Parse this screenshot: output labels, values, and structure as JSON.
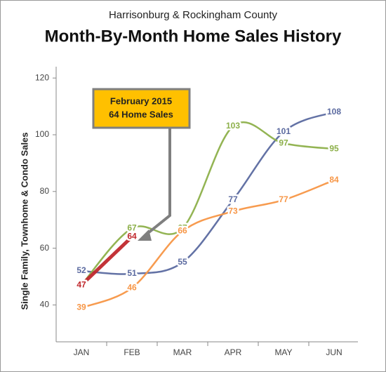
{
  "chart_data": {
    "type": "line",
    "subtitle": "Harrisonburg & Rockingham County",
    "title": "Month-By-Month Home Sales History",
    "y_label": "Single Family, Townhome & Condo Sales",
    "annotation": [
      "February 2015",
      "64 Home Sales"
    ],
    "categories": [
      "JAN",
      "FEB",
      "MAR",
      "APR",
      "MAY",
      "JUN"
    ],
    "series": [
      {
        "color": "#5b6aa0",
        "values": [
          52,
          51,
          55,
          77,
          101,
          108
        ]
      },
      {
        "color": "#8db04a",
        "values": [
          47,
          67,
          67,
          103,
          97,
          95
        ]
      },
      {
        "color": "#f79646",
        "values": [
          39,
          46,
          66,
          73,
          77,
          84
        ]
      },
      {
        "color": "#c0282d",
        "values": [
          47,
          64,
          null,
          null,
          null,
          null
        ]
      }
    ],
    "ylim": [
      27,
      124
    ],
    "yticks": [
      40,
      60,
      80,
      100,
      120
    ],
    "grid": false
  }
}
